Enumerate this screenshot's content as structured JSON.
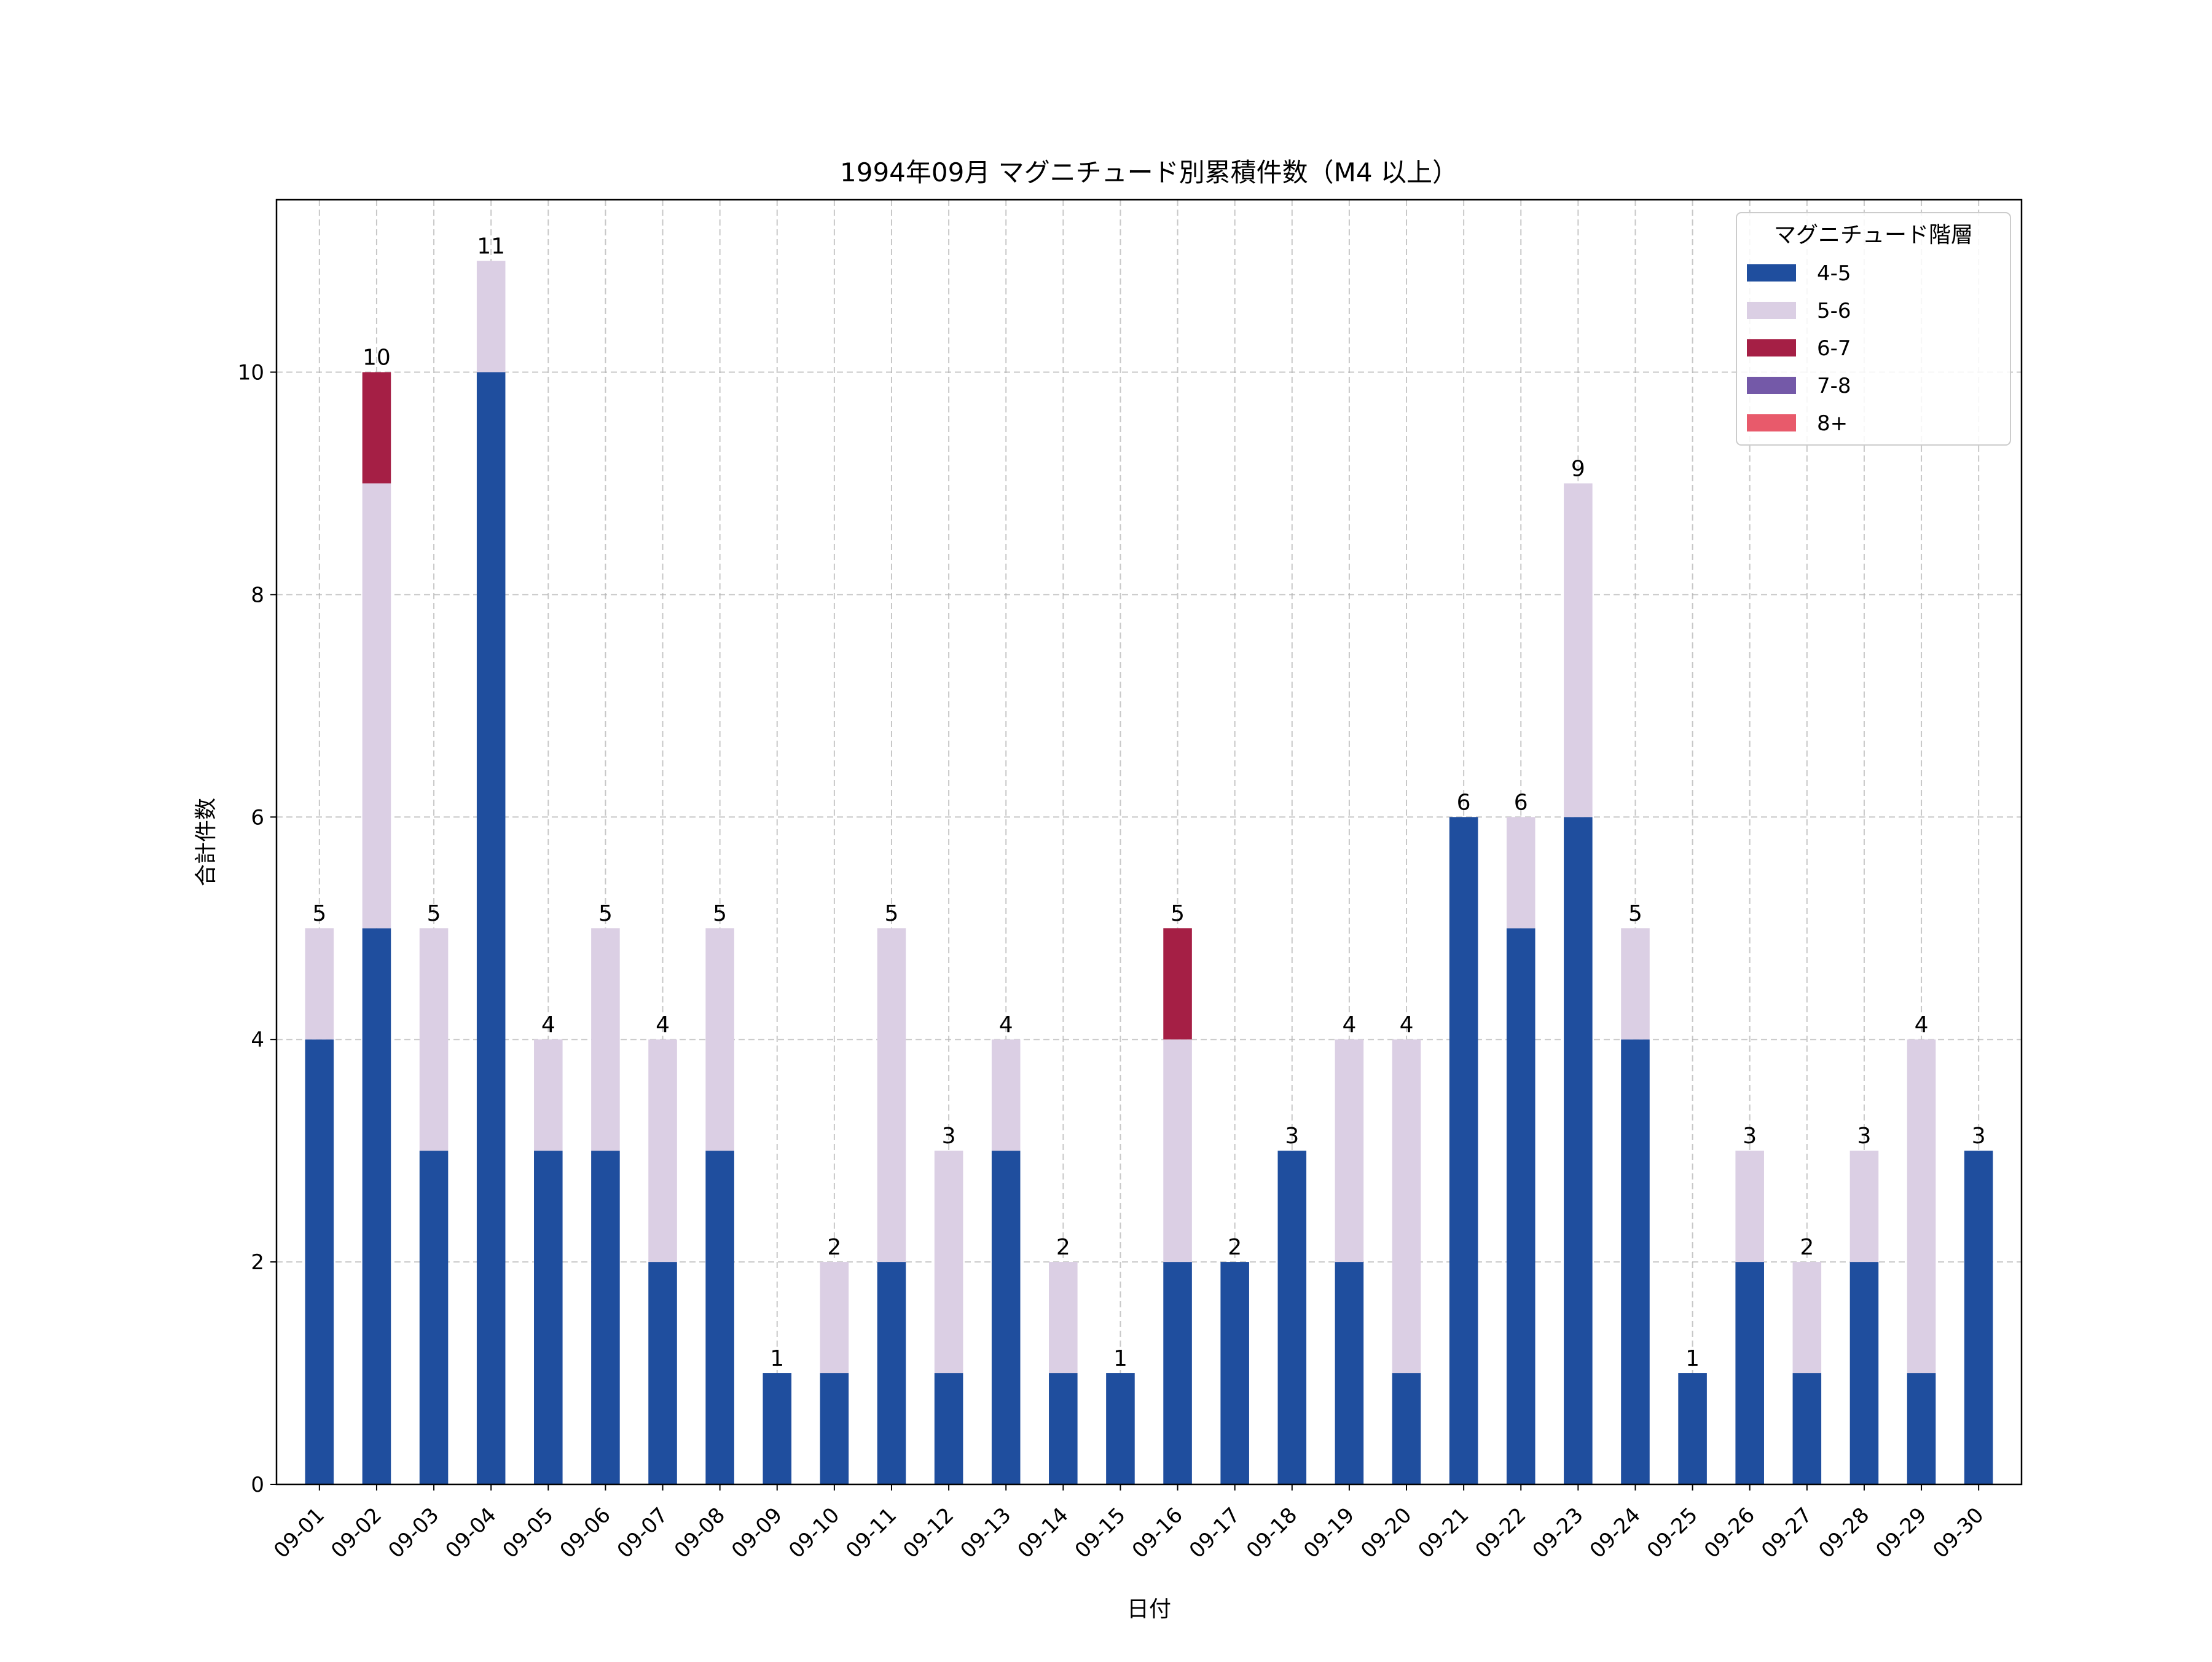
{
  "chart_data": {
    "type": "bar",
    "stacked": true,
    "title": "1994年09月 マグニチュード別累積件数（M4 以上）",
    "xlabel": "日付",
    "ylabel": "合計件数",
    "categories": [
      "09-01",
      "09-02",
      "09-03",
      "09-04",
      "09-05",
      "09-06",
      "09-07",
      "09-08",
      "09-09",
      "09-10",
      "09-11",
      "09-12",
      "09-13",
      "09-14",
      "09-15",
      "09-16",
      "09-17",
      "09-18",
      "09-19",
      "09-20",
      "09-21",
      "09-22",
      "09-23",
      "09-24",
      "09-25",
      "09-26",
      "09-27",
      "09-28",
      "09-29",
      "09-30"
    ],
    "series": [
      {
        "name": "4-5",
        "color": "#1f4e9e",
        "values": [
          4,
          5,
          3,
          10,
          3,
          3,
          2,
          3,
          1,
          1,
          2,
          1,
          3,
          1,
          1,
          2,
          2,
          3,
          2,
          1,
          6,
          5,
          6,
          4,
          1,
          2,
          1,
          2,
          1,
          3
        ]
      },
      {
        "name": "5-6",
        "color": "#dbcfe4",
        "values": [
          1,
          4,
          2,
          1,
          1,
          2,
          2,
          2,
          0,
          1,
          3,
          2,
          1,
          1,
          0,
          2,
          0,
          0,
          2,
          3,
          0,
          1,
          3,
          1,
          0,
          1,
          1,
          1,
          3,
          0
        ]
      },
      {
        "name": "6-7",
        "color": "#a51f45",
        "values": [
          0,
          1,
          0,
          0,
          0,
          0,
          0,
          0,
          0,
          0,
          0,
          0,
          0,
          0,
          0,
          1,
          0,
          0,
          0,
          0,
          0,
          0,
          0,
          0,
          0,
          0,
          0,
          0,
          0,
          0
        ]
      },
      {
        "name": "7-8",
        "color": "#7459a8",
        "values": [
          0,
          0,
          0,
          0,
          0,
          0,
          0,
          0,
          0,
          0,
          0,
          0,
          0,
          0,
          0,
          0,
          0,
          0,
          0,
          0,
          0,
          0,
          0,
          0,
          0,
          0,
          0,
          0,
          0,
          0
        ]
      },
      {
        "name": "8+",
        "color": "#e85a6b",
        "values": [
          0,
          0,
          0,
          0,
          0,
          0,
          0,
          0,
          0,
          0,
          0,
          0,
          0,
          0,
          0,
          0,
          0,
          0,
          0,
          0,
          0,
          0,
          0,
          0,
          0,
          0,
          0,
          0,
          0,
          0
        ]
      }
    ],
    "totals": [
      5,
      10,
      5,
      11,
      4,
      5,
      4,
      5,
      1,
      2,
      5,
      3,
      4,
      2,
      1,
      5,
      2,
      3,
      4,
      4,
      6,
      6,
      9,
      5,
      1,
      3,
      2,
      3,
      4,
      3
    ],
    "ylim": [
      0,
      11.55
    ],
    "yticks": [
      "0",
      "2",
      "4",
      "6",
      "8",
      "10"
    ],
    "grid": true,
    "legend": {
      "title": "マグニチュード階層",
      "placement": "top-right"
    }
  }
}
